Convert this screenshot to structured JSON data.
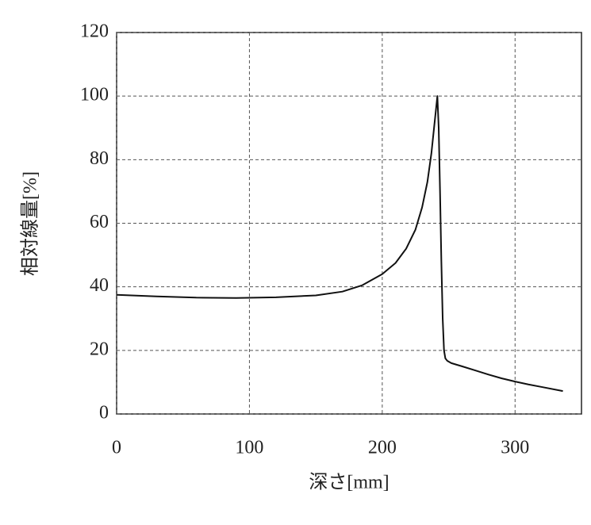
{
  "chart_data": {
    "type": "line",
    "x_label": "深さ[mm]",
    "y_label": "相対線量[%]",
    "x": [
      0,
      30,
      60,
      90,
      120,
      150,
      170,
      185,
      200,
      210,
      218,
      225,
      230,
      234,
      237,
      239,
      240.5,
      241.5,
      242.5,
      243.5,
      244.5,
      245.5,
      246.5,
      247.5,
      249,
      252,
      260,
      270,
      280,
      290,
      300,
      310,
      320,
      336
    ],
    "values": [
      37.5,
      37,
      36.6,
      36.5,
      36.7,
      37.3,
      38.5,
      40.5,
      44,
      47.5,
      52,
      58,
      65,
      73,
      82,
      90,
      96,
      100,
      90,
      70,
      48,
      30,
      20,
      17.5,
      16.7,
      16,
      15,
      13.7,
      12.4,
      11.2,
      10.2,
      9.3,
      8.5,
      7.2
    ],
    "color": "#111111",
    "xlim": [
      0,
      350
    ],
    "ylim": [
      0,
      120
    ],
    "xticks": [
      0,
      100,
      200,
      300
    ],
    "yticks": [
      0,
      20,
      40,
      60,
      80,
      100,
      120
    ],
    "grid": true
  }
}
